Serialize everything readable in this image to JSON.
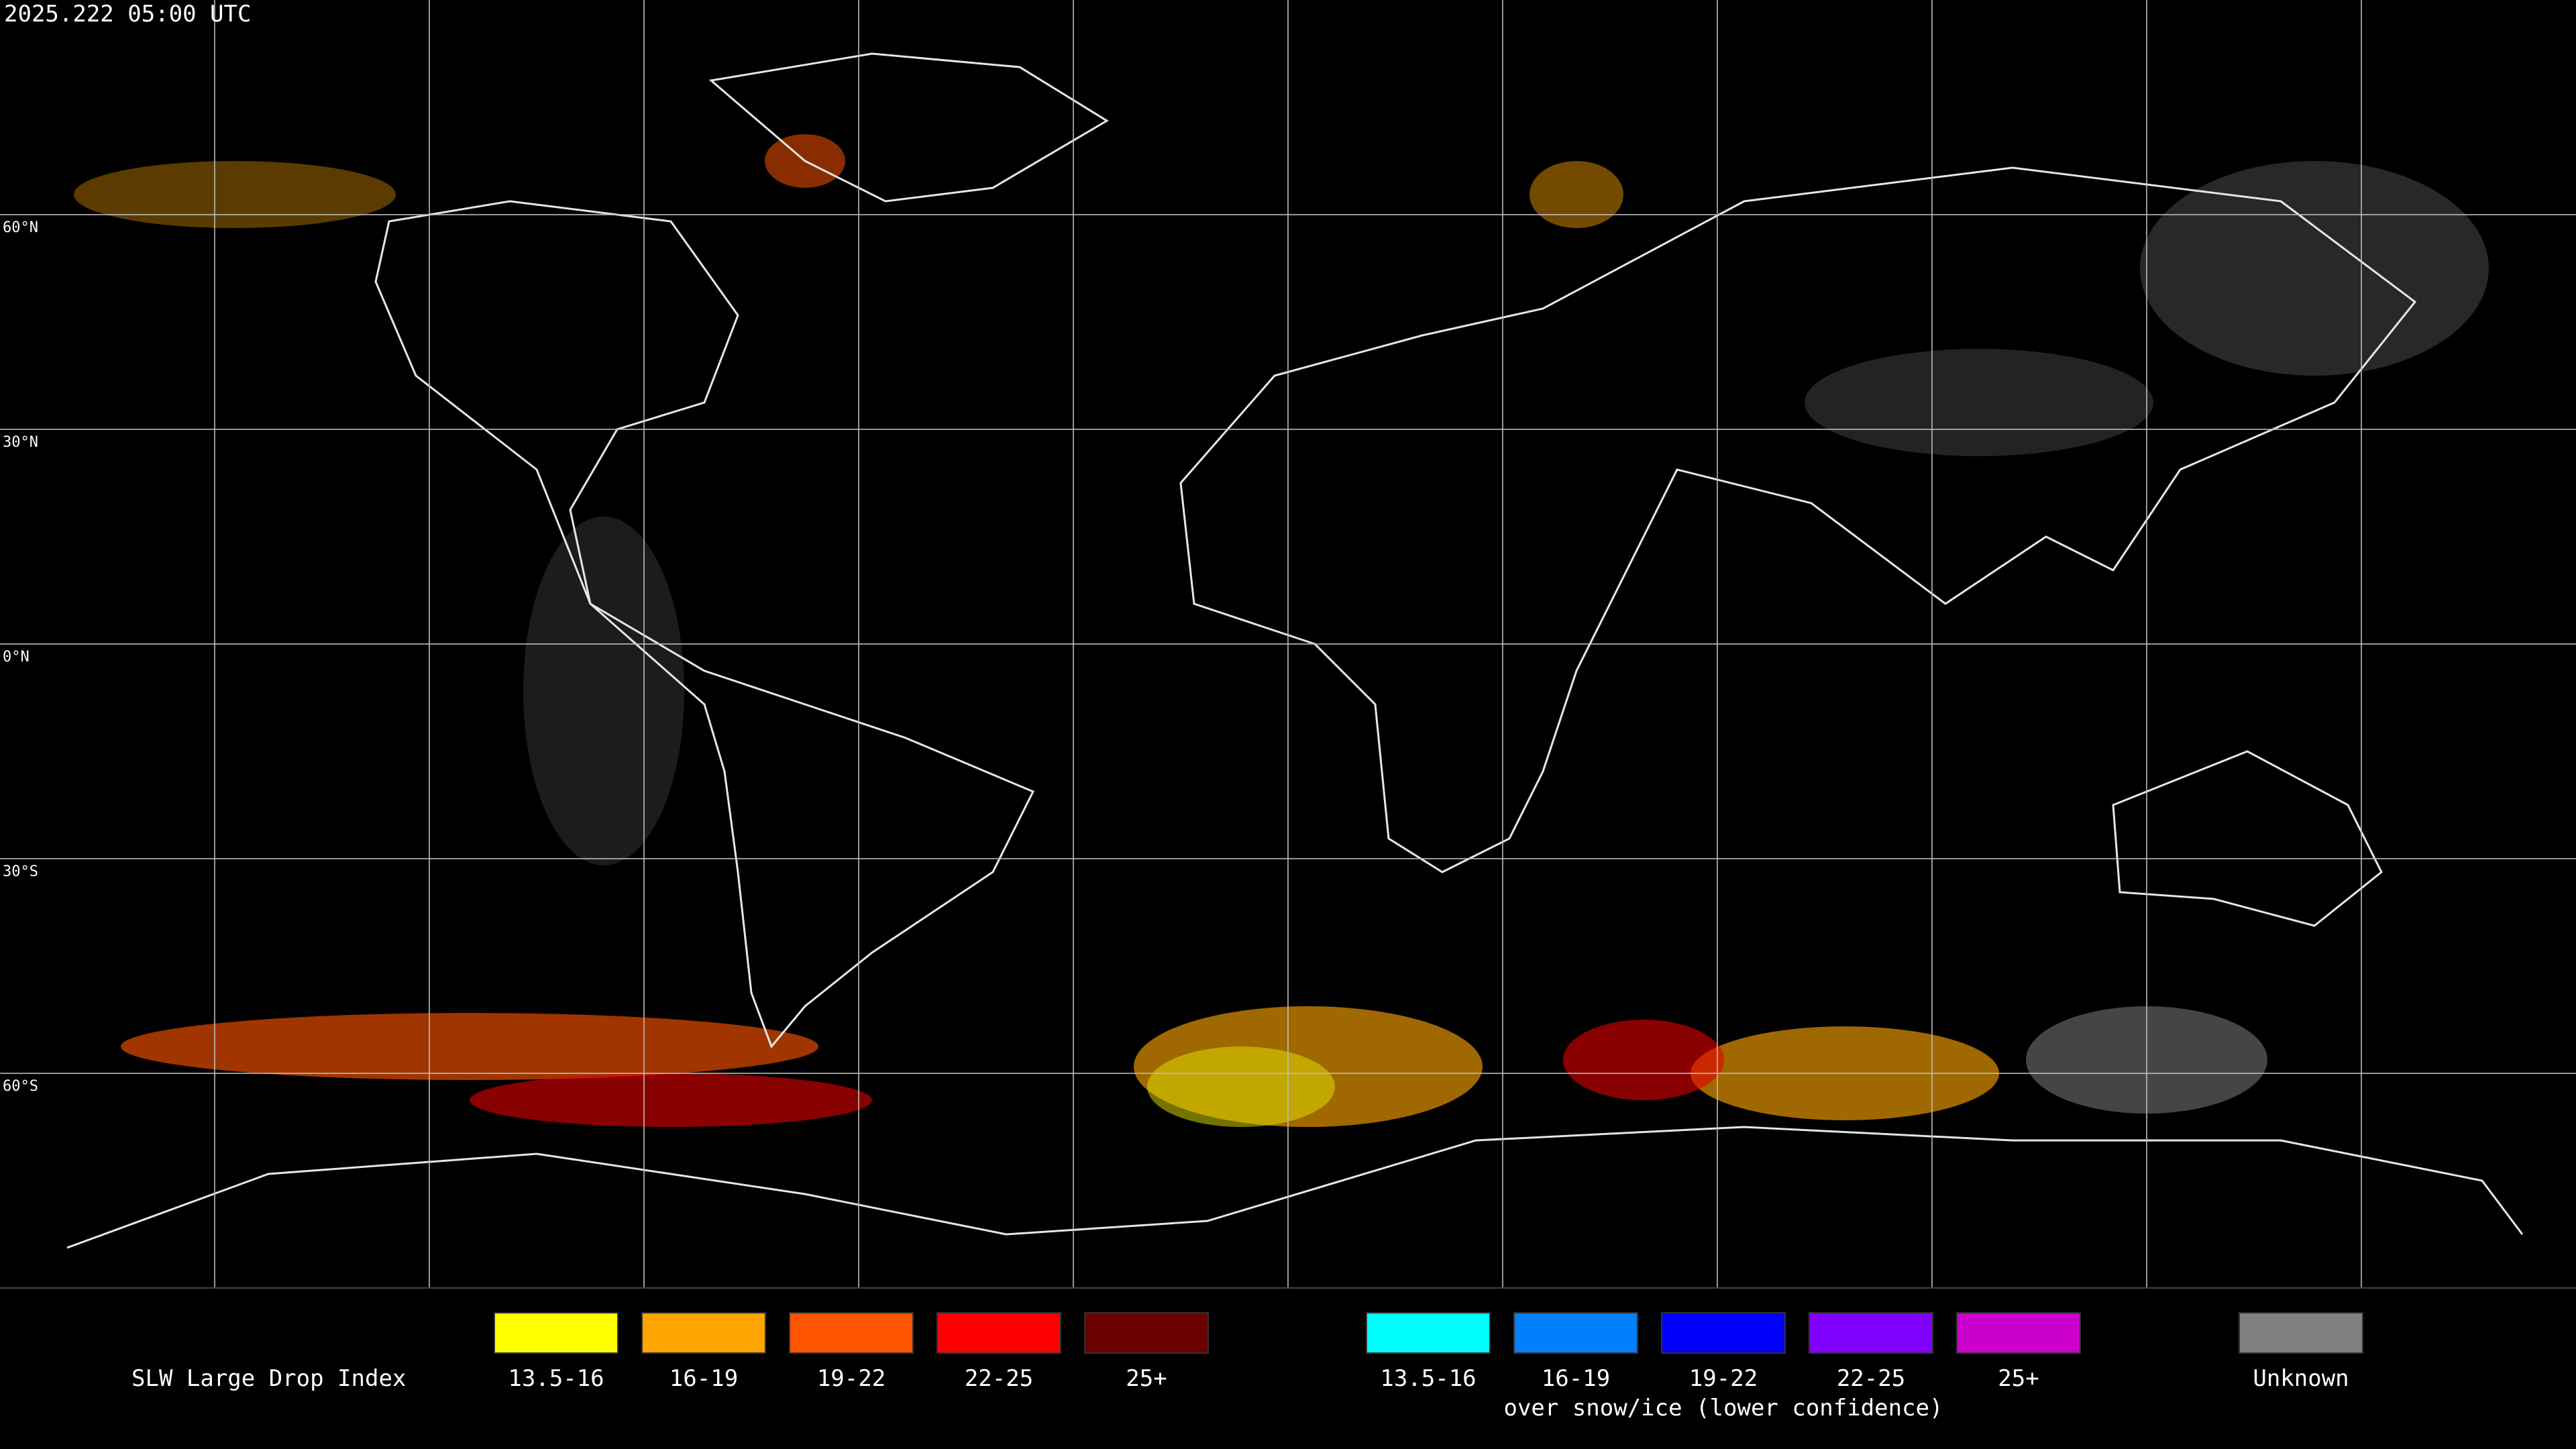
{
  "header": {
    "timestamp": "2025.222 05:00 UTC"
  },
  "map": {
    "latitude_labels": [
      "60°N",
      "30°N",
      "0°N",
      "30°S",
      "60°S"
    ]
  },
  "legend": {
    "title": "SLW Large Drop Index",
    "groups": [
      {
        "items": [
          {
            "label": "13.5-16",
            "color": "#ffff00"
          },
          {
            "label": "16-19",
            "color": "#ffa500"
          },
          {
            "label": "19-22",
            "color": "#ff5500"
          },
          {
            "label": "22-25",
            "color": "#ff0000"
          },
          {
            "label": "25+",
            "color": "#6b0000"
          }
        ]
      },
      {
        "items": [
          {
            "label": "13.5-16",
            "color": "#00ffff"
          },
          {
            "label": "16-19",
            "color": "#0080ff"
          },
          {
            "label": "19-22",
            "color": "#0000ff"
          },
          {
            "label": "22-25",
            "color": "#8000ff"
          },
          {
            "label": "25+",
            "color": "#cc00cc"
          }
        ],
        "caption": "over snow/ice (lower confidence)"
      }
    ],
    "unknown": {
      "label": "Unknown",
      "color": "#808080"
    }
  }
}
